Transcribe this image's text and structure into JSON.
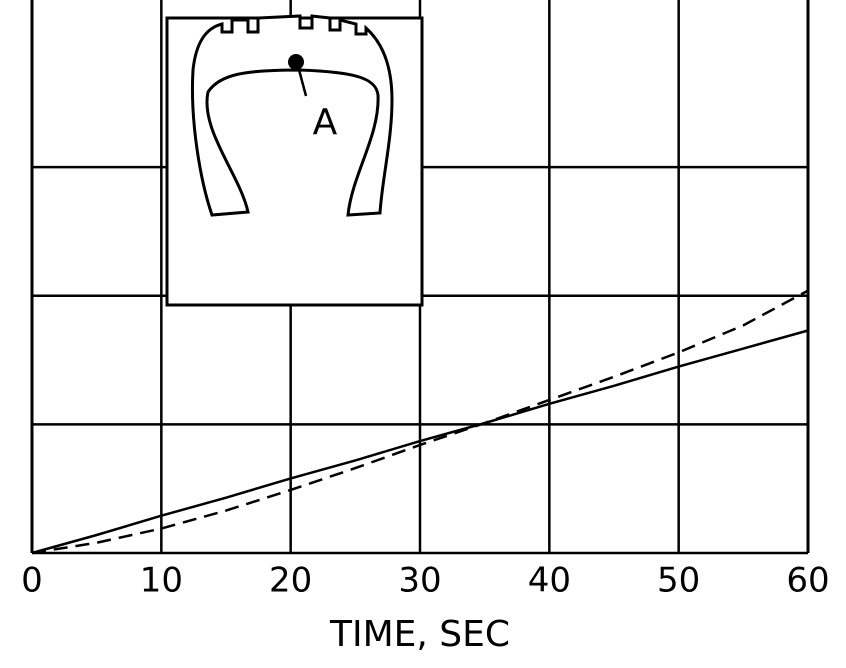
{
  "chart_data": {
    "type": "line",
    "xlabel": "TIME, SEC",
    "annotations": [
      "A"
    ],
    "x": [
      0,
      5,
      10,
      15,
      20,
      25,
      30,
      35,
      40,
      45,
      50,
      55,
      60
    ],
    "series": [
      {
        "color": "#000000",
        "style": "solid",
        "values": [
          0,
          0.14,
          0.29,
          0.43,
          0.58,
          0.72,
          0.87,
          1.01,
          1.16,
          1.3,
          1.45,
          1.59,
          1.73
        ]
      },
      {
        "color": "#000000",
        "style": "dashed",
        "values": [
          0,
          0.08,
          0.19,
          0.33,
          0.49,
          0.66,
          0.84,
          1.01,
          1.19,
          1.37,
          1.56,
          1.77,
          2.04
        ]
      }
    ],
    "xlim": [
      0,
      60
    ],
    "xticks": [
      0,
      10,
      20,
      30,
      40,
      50,
      60
    ],
    "ylim": [
      0,
      4.3
    ],
    "yticks": [
      0,
      1,
      2,
      3
    ],
    "grid": true
  }
}
